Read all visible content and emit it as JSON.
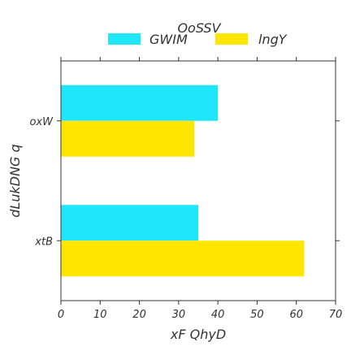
{
  "chart_data": {
    "type": "bar",
    "orientation": "horizontal",
    "categories": [
      "oxW",
      "xtB"
    ],
    "series": [
      {
        "name": "GWIM",
        "values": [
          40,
          35
        ],
        "color": "#1fe6fb"
      },
      {
        "name": "lngY",
        "values": [
          34,
          62
        ],
        "color": "#ffe600"
      }
    ],
    "xlabel": "xF QhyD",
    "ylabel": "dLukDNG q",
    "xlim": [
      0,
      70
    ],
    "xticks": [
      0,
      10,
      20,
      30,
      40,
      50,
      60,
      70
    ],
    "grid": false,
    "legend": {
      "title": "OoSSV",
      "placement": "top-center",
      "columns": 2
    }
  }
}
